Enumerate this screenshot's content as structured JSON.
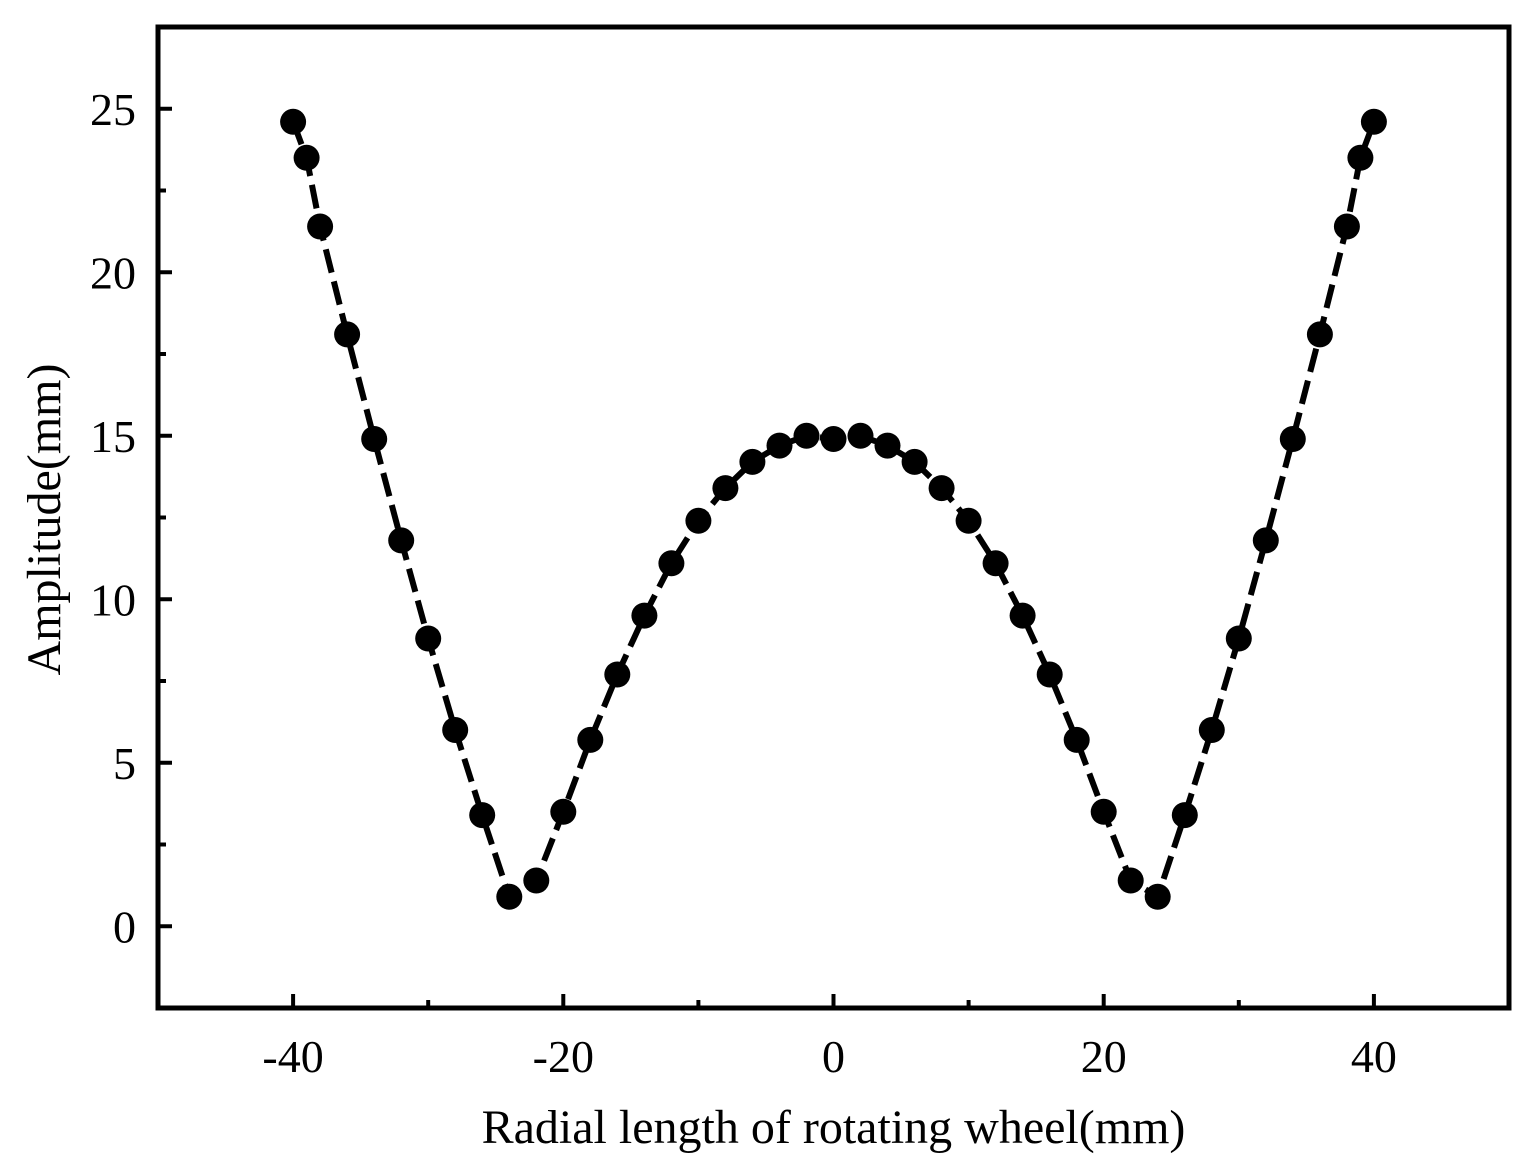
{
  "chart_data": {
    "type": "line",
    "title": "",
    "xlabel": "Radial length of rotating wheel(mm)",
    "ylabel": "Amplitude(mm)",
    "xlim": [
      -50,
      50
    ],
    "ylim": [
      -2.5,
      27.5
    ],
    "xticks": [
      -40,
      -20,
      0,
      20,
      40
    ],
    "xtick_labels": [
      "-40",
      "-20",
      "0",
      "20",
      "40"
    ],
    "yticks": [
      0,
      5,
      10,
      15,
      20,
      25
    ],
    "ytick_labels": [
      "0",
      "5",
      "10",
      "15",
      "20",
      "25"
    ],
    "grid": false,
    "legend": false,
    "line_style": "dashed",
    "marker": "filled-circle",
    "color": "#000000",
    "series": [
      {
        "name": "Amplitude",
        "x": [
          -40,
          -39,
          -38,
          -36,
          -34,
          -32,
          -30,
          -28,
          -26,
          -24,
          -22,
          -20,
          -18,
          -16,
          -14,
          -12,
          -10,
          -8,
          -6,
          -4,
          -2,
          0,
          2,
          4,
          6,
          8,
          10,
          12,
          14,
          16,
          18,
          20,
          22,
          24,
          26,
          28,
          30,
          32,
          34,
          36,
          38,
          39,
          40
        ],
        "y": [
          24.6,
          23.5,
          21.4,
          18.1,
          14.9,
          11.8,
          8.8,
          6.0,
          3.4,
          0.9,
          1.4,
          3.5,
          5.7,
          7.7,
          9.5,
          11.1,
          12.4,
          13.4,
          14.2,
          14.7,
          15.0,
          14.9,
          15.0,
          14.7,
          14.2,
          13.4,
          12.4,
          11.1,
          9.5,
          7.7,
          5.7,
          3.5,
          1.4,
          0.9,
          3.4,
          6.0,
          8.8,
          11.8,
          14.9,
          18.1,
          21.4,
          23.5,
          24.6
        ]
      }
    ]
  }
}
